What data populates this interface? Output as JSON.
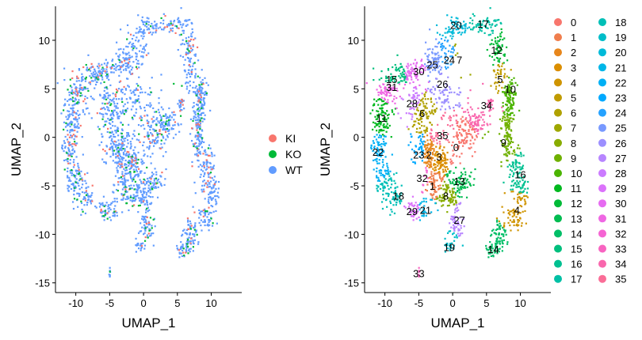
{
  "chart_data": [
    {
      "type": "scatter",
      "title": "",
      "xlabel": "UMAP_1",
      "ylabel": "UMAP_2",
      "xlim": [
        -13,
        14.5
      ],
      "ylim": [
        -16,
        13.5
      ],
      "xticks": [
        -10,
        -5,
        0,
        5,
        10
      ],
      "yticks": [
        -15,
        -10,
        -5,
        0,
        5,
        10
      ],
      "grid": false,
      "legend_position": "right",
      "series": [
        {
          "name": "KI",
          "color": "#F8766D"
        },
        {
          "name": "KO",
          "color": "#00BA38"
        },
        {
          "name": "WT",
          "color": "#619CFF"
        }
      ]
    },
    {
      "type": "scatter",
      "title": "",
      "xlabel": "UMAP_1",
      "ylabel": "UMAP_2",
      "xlim": [
        -13,
        14.5
      ],
      "ylim": [
        -16,
        13.5
      ],
      "xticks": [
        -10,
        -5,
        0,
        5,
        10
      ],
      "yticks": [
        -15,
        -10,
        -5,
        0,
        5,
        10
      ],
      "grid": false,
      "legend_position": "right",
      "clusters": [
        {
          "name": "0",
          "color": "#F8766D",
          "label_xy": [
            0.5,
            -1
          ]
        },
        {
          "name": "1",
          "color": "#F07E4D",
          "label_xy": [
            -3,
            -5
          ]
        },
        {
          "name": "2",
          "color": "#E7861B",
          "label_xy": [
            -3.5,
            -1.8
          ]
        },
        {
          "name": "3",
          "color": "#DB8E00",
          "label_xy": [
            -2,
            -2
          ]
        },
        {
          "name": "4",
          "color": "#CF9400",
          "label_xy": [
            9.5,
            -7.5
          ]
        },
        {
          "name": "5",
          "color": "#C09B00",
          "label_xy": [
            7,
            6
          ]
        },
        {
          "name": "6",
          "color": "#B0A100",
          "label_xy": [
            -4.5,
            2.5
          ]
        },
        {
          "name": "7",
          "color": "#9EA700",
          "label_xy": [
            1,
            8
          ]
        },
        {
          "name": "8",
          "color": "#88AC00",
          "label_xy": [
            -1,
            -6
          ]
        },
        {
          "name": "9",
          "color": "#6FB000",
          "label_xy": [
            7.5,
            -0.5
          ]
        },
        {
          "name": "10",
          "color": "#4BB400",
          "label_xy": [
            8.5,
            5
          ]
        },
        {
          "name": "11",
          "color": "#00B81F",
          "label_xy": [
            -10.5,
            2
          ]
        },
        {
          "name": "12",
          "color": "#00BA38",
          "label_xy": [
            6.5,
            9
          ]
        },
        {
          "name": "13",
          "color": "#00BC51",
          "label_xy": [
            1,
            -4.5
          ]
        },
        {
          "name": "14",
          "color": "#00BE67",
          "label_xy": [
            6,
            -11.5
          ]
        },
        {
          "name": "15",
          "color": "#00BF7D",
          "label_xy": [
            -9,
            6
          ]
        },
        {
          "name": "16",
          "color": "#00C091",
          "label_xy": [
            10,
            -3.8
          ]
        },
        {
          "name": "17",
          "color": "#00C0A5",
          "label_xy": [
            4.5,
            11.7
          ]
        },
        {
          "name": "18",
          "color": "#00BFB7",
          "label_xy": [
            -8,
            -6
          ]
        },
        {
          "name": "19",
          "color": "#00BDC9",
          "label_xy": [
            -0.5,
            -11.3
          ]
        },
        {
          "name": "20",
          "color": "#00BAD9",
          "label_xy": [
            0.5,
            11.6
          ]
        },
        {
          "name": "21",
          "color": "#00B6E8",
          "label_xy": [
            -4,
            -7.5
          ]
        },
        {
          "name": "22",
          "color": "#00B0F5",
          "label_xy": [
            -11,
            -1.5
          ]
        },
        {
          "name": "23",
          "color": "#00A9FF",
          "label_xy": [
            -5,
            -1.8
          ]
        },
        {
          "name": "24",
          "color": "#25A2FF",
          "label_xy": [
            -0.5,
            8
          ]
        },
        {
          "name": "25",
          "color": "#7899FF",
          "label_xy": [
            -3,
            7.5
          ]
        },
        {
          "name": "26",
          "color": "#9C8FFF",
          "label_xy": [
            -1.5,
            5.5
          ]
        },
        {
          "name": "27",
          "color": "#B785FF",
          "label_xy": [
            1,
            -8.5
          ]
        },
        {
          "name": "28",
          "color": "#CB7BFF",
          "label_xy": [
            -6,
            3.5
          ]
        },
        {
          "name": "29",
          "color": "#DB72FB",
          "label_xy": [
            -6,
            -7.6
          ]
        },
        {
          "name": "30",
          "color": "#E66BF1",
          "label_xy": [
            -5,
            6.8
          ]
        },
        {
          "name": "31",
          "color": "#EF67E3",
          "label_xy": [
            -9,
            5.2
          ]
        },
        {
          "name": "32",
          "color": "#F564D3",
          "label_xy": [
            -4.5,
            -4.2
          ]
        },
        {
          "name": "33",
          "color": "#F864C1",
          "label_xy": [
            -5,
            -14
          ]
        },
        {
          "name": "34",
          "color": "#F967AD",
          "label_xy": [
            5,
            3.3
          ]
        },
        {
          "name": "35",
          "color": "#FA6D97",
          "label_xy": [
            -1.5,
            0.2
          ]
        }
      ]
    }
  ]
}
